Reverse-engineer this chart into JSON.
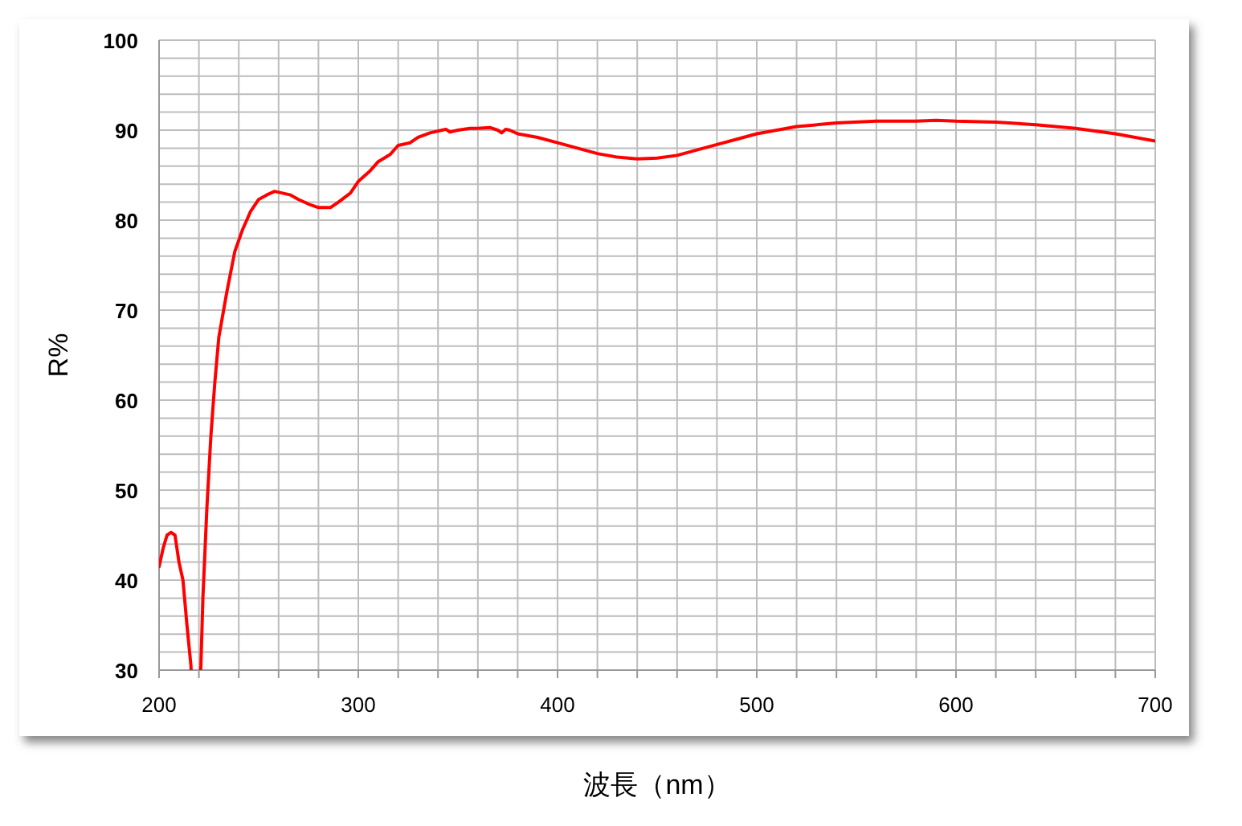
{
  "chart_data": {
    "type": "line",
    "xlabel": "波長（nm）",
    "ylabel": "R%",
    "grid": true,
    "xlim": [
      200,
      700
    ],
    "ylim": [
      30,
      100
    ],
    "xticks": [
      200,
      {
        "value": 220,
        "label": null
      },
      {
        "value": 240,
        "label": null
      },
      {
        "value": 260,
        "label": null
      },
      {
        "value": 280,
        "label": null
      },
      300,
      {
        "value": 320,
        "label": null
      },
      {
        "value": 340,
        "label": null
      },
      {
        "value": 360,
        "label": null
      },
      {
        "value": 380,
        "label": null
      },
      400,
      {
        "value": 420,
        "label": null
      },
      {
        "value": 440,
        "label": null
      },
      {
        "value": 460,
        "label": null
      },
      {
        "value": 480,
        "label": null
      },
      500,
      {
        "value": 520,
        "label": null
      },
      {
        "value": 540,
        "label": null
      },
      {
        "value": 560,
        "label": null
      },
      {
        "value": 580,
        "label": null
      },
      600,
      {
        "value": 620,
        "label": null
      },
      {
        "value": 640,
        "label": null
      },
      {
        "value": 660,
        "label": null
      },
      {
        "value": 680,
        "label": null
      },
      700
    ],
    "yticks": [
      30,
      {
        "value": 32,
        "label": null
      },
      {
        "value": 34,
        "label": null
      },
      {
        "value": 36,
        "label": null
      },
      {
        "value": 38,
        "label": null
      },
      40,
      {
        "value": 42,
        "label": null
      },
      {
        "value": 44,
        "label": null
      },
      {
        "value": 46,
        "label": null
      },
      {
        "value": 48,
        "label": null
      },
      50,
      {
        "value": 52,
        "label": null
      },
      {
        "value": 54,
        "label": null
      },
      {
        "value": 56,
        "label": null
      },
      {
        "value": 58,
        "label": null
      },
      60,
      {
        "value": 62,
        "label": null
      },
      {
        "value": 64,
        "label": null
      },
      {
        "value": 66,
        "label": null
      },
      {
        "value": 68,
        "label": null
      },
      70,
      {
        "value": 72,
        "label": null
      },
      {
        "value": 74,
        "label": null
      },
      {
        "value": 76,
        "label": null
      },
      {
        "value": 78,
        "label": null
      },
      80,
      {
        "value": 82,
        "label": null
      },
      {
        "value": 84,
        "label": null
      },
      {
        "value": 86,
        "label": null
      },
      {
        "value": 88,
        "label": null
      },
      90,
      {
        "value": 92,
        "label": null
      },
      {
        "value": 94,
        "label": null
      },
      {
        "value": 96,
        "label": null
      },
      {
        "value": 98,
        "label": null
      },
      100
    ],
    "series": [
      {
        "color": "#ff0000",
        "x": [
          200,
          202,
          204,
          206,
          208,
          210,
          212,
          214,
          216,
          218,
          221,
          222,
          224,
          226,
          228,
          230,
          234,
          238,
          242,
          246,
          250,
          254,
          258,
          262,
          266,
          270,
          276,
          280,
          286,
          290,
          296,
          300,
          306,
          310,
          316,
          320,
          326,
          330,
          336,
          342,
          344,
          346,
          350,
          356,
          360,
          366,
          370,
          372,
          374,
          376,
          380,
          390,
          400,
          410,
          420,
          430,
          440,
          450,
          460,
          470,
          480,
          490,
          500,
          520,
          540,
          560,
          580,
          590,
          600,
          620,
          640,
          660,
          680,
          700
        ],
        "values": [
          41.5,
          43.5,
          45,
          45.3,
          45,
          42,
          40,
          35,
          30.5,
          null,
          30.5,
          38,
          48,
          56,
          62,
          67,
          72,
          76.5,
          79,
          81,
          82.3,
          82.8,
          83.2,
          83,
          82.8,
          82.3,
          81.7,
          81.4,
          81.4,
          82,
          83,
          84.3,
          85.5,
          86.5,
          87.3,
          88.3,
          88.6,
          89.2,
          89.7,
          90,
          90.1,
          89.8,
          90,
          90.2,
          90.2,
          90.3,
          90,
          89.7,
          90.1,
          90,
          89.6,
          89.2,
          88.6,
          88,
          87.4,
          87,
          86.8,
          86.9,
          87.2,
          87.8,
          88.4,
          89,
          89.6,
          90.4,
          90.8,
          91,
          91,
          91.1,
          91,
          90.9,
          90.6,
          90.2,
          89.6,
          88.8
        ]
      }
    ]
  }
}
